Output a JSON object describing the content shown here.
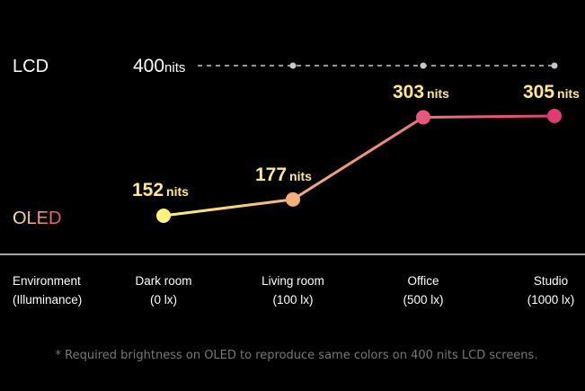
{
  "chart_data": {
    "type": "line",
    "categories": [
      {
        "name": "Dark room",
        "sub": "(0 lx)"
      },
      {
        "name": "Living room",
        "sub": "(100 lx)"
      },
      {
        "name": "Office",
        "sub": "(500 lx)"
      },
      {
        "name": "Studio",
        "sub": "(1000 lx)"
      }
    ],
    "axis_label": {
      "line1": "Environment",
      "line2": "(Illuminance)"
    },
    "unit": "nits",
    "series": [
      {
        "name_prefix": "OLED",
        "points": [
          {
            "category": "Dark room",
            "value": 152,
            "label": "152"
          },
          {
            "category": "Living room",
            "value": 177,
            "label": "177"
          },
          {
            "category": "Office",
            "value": 303,
            "label": "303"
          },
          {
            "category": "Studio",
            "value": 305,
            "label": "305"
          }
        ],
        "style": "solid-gradient",
        "colors": [
          "#fff27a",
          "#f4b07a",
          "#e8577f",
          "#e03c74"
        ]
      },
      {
        "name_prefix": "LCD",
        "label_value": "400",
        "constant_value": 400,
        "style": "dashed",
        "color": "#c8c8c8",
        "point_categories": [
          "Living room",
          "Office",
          "Studio"
        ]
      }
    ],
    "label_colors": {
      "value": "#ffe98a",
      "text": "#ffffff",
      "muted": "#777777"
    }
  },
  "footnote": "* Required brightness on OLED to reproduce same colors on 400 nits LCD screens."
}
